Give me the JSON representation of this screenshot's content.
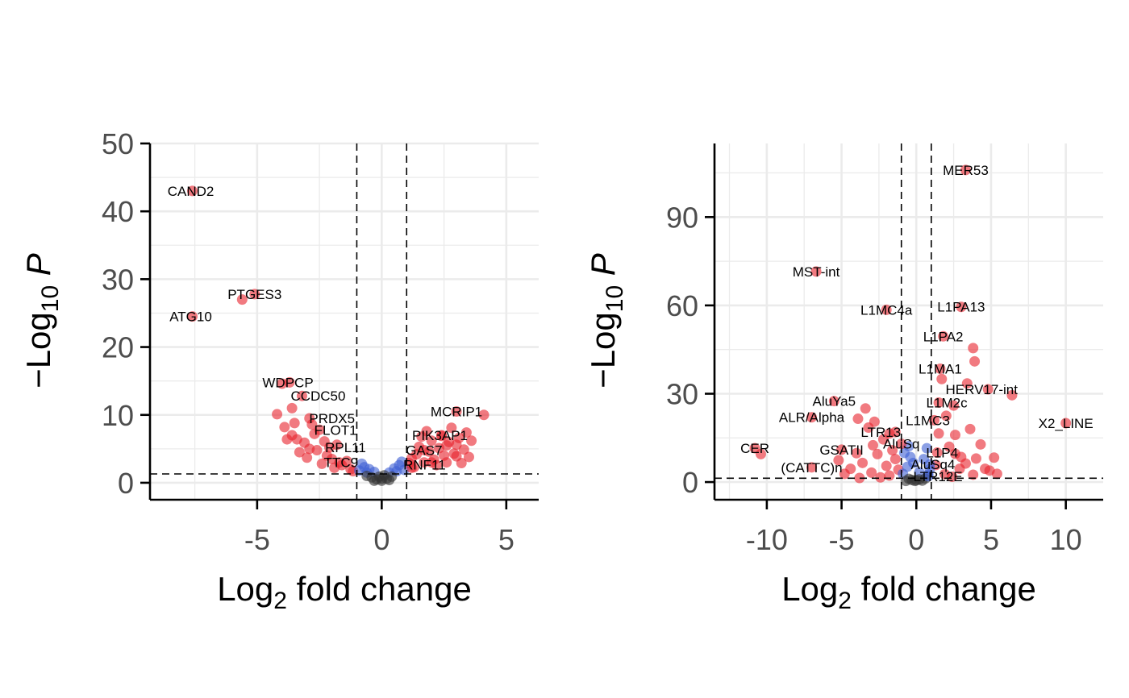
{
  "chart_data": [
    {
      "type": "scatter",
      "xlabel": "Log2 fold change",
      "ylabel": "−Log10 P",
      "xlim": [
        -9.3,
        6.3
      ],
      "ylim": [
        -2.5,
        50
      ],
      "xticks": [
        -5,
        0,
        5
      ],
      "yticks": [
        0,
        10,
        20,
        30,
        40,
        50
      ],
      "minor_x": [
        -7.5,
        -2.5,
        2.5
      ],
      "minor_y": [
        5,
        15,
        25,
        35,
        45
      ],
      "cutoffs": {
        "fc": 1,
        "p_line": 1.3
      },
      "grid": true,
      "legend": "none",
      "colors": {
        "sig": "#e8222b",
        "p_only": "#3e5fd4",
        "ns": "#333333"
      },
      "labeled_points": [
        {
          "label": "CAND2",
          "x": -7.6,
          "y": 43
        },
        {
          "label": "PTGES3",
          "x": -5.6,
          "y": 27
        },
        {
          "label": "PTGES3",
          "x": -5.1,
          "y": 27.8
        },
        {
          "label": "ATG10",
          "x": -7.6,
          "y": 24.5
        },
        {
          "label": "WDPCP",
          "x": -3.7,
          "y": 14.8
        },
        {
          "label": "CCDC50",
          "x": -3.2,
          "y": 12.8
        },
        {
          "label": "PRDX5",
          "x": -2.9,
          "y": 9.5
        },
        {
          "label": "FLOT1",
          "x": -2.5,
          "y": 7.8
        },
        {
          "label": "RPL11",
          "x": -2.1,
          "y": 5.2
        },
        {
          "label": "TTC9",
          "x": -1.7,
          "y": 3.0
        },
        {
          "label": "RNF11",
          "x": 1.2,
          "y": 2.2
        },
        {
          "label": "MCRIP1",
          "x": 3.0,
          "y": 10.5
        },
        {
          "label": "PIK3AP1",
          "x": 2.4,
          "y": 7.0
        },
        {
          "label": "GAS7",
          "x": 1.7,
          "y": 4.8
        }
      ],
      "points": [
        [
          -4.2,
          10.1
        ],
        [
          -3.9,
          8.2
        ],
        [
          -3.6,
          7.0
        ],
        [
          -3.4,
          6.4
        ],
        [
          -3.1,
          5.9
        ],
        [
          -3.3,
          4.5
        ],
        [
          -3.0,
          3.7
        ],
        [
          -2.7,
          7.2
        ],
        [
          -2.6,
          4.8
        ],
        [
          -2.3,
          6.1
        ],
        [
          -2.2,
          4.0
        ],
        [
          -2.0,
          3.5
        ],
        [
          -1.8,
          5.6
        ],
        [
          -1.6,
          2.6
        ],
        [
          -1.4,
          3.2
        ],
        [
          -1.25,
          2.0
        ],
        [
          -1.15,
          1.7
        ],
        [
          -3.8,
          6.4
        ],
        [
          -3.5,
          8.8
        ],
        [
          -2.9,
          5.0
        ],
        [
          -2.4,
          2.8
        ],
        [
          -1.9,
          2.2
        ],
        [
          -4.0,
          14.6
        ],
        [
          -3.6,
          11.0
        ],
        [
          -2.8,
          8.6
        ],
        [
          1.2,
          3.6
        ],
        [
          1.4,
          4.2
        ],
        [
          1.5,
          5.3
        ],
        [
          1.7,
          3.0
        ],
        [
          1.9,
          4.6
        ],
        [
          2.0,
          6.2
        ],
        [
          2.1,
          3.4
        ],
        [
          2.3,
          5.1
        ],
        [
          2.5,
          4.0
        ],
        [
          2.7,
          6.0
        ],
        [
          2.8,
          8.1
        ],
        [
          2.9,
          4.3
        ],
        [
          3.1,
          6.6
        ],
        [
          3.3,
          4.9
        ],
        [
          3.4,
          7.4
        ],
        [
          3.5,
          3.8
        ],
        [
          4.1,
          10.0
        ],
        [
          1.3,
          2.3
        ],
        [
          1.6,
          6.8
        ],
        [
          2.2,
          2.6
        ],
        [
          2.6,
          3.0
        ],
        [
          3.0,
          5.6
        ],
        [
          3.2,
          2.9
        ],
        [
          1.8,
          7.6
        ],
        [
          2.4,
          6.9
        ],
        [
          3.6,
          6.2
        ],
        [
          2.0,
          3.0
        ],
        [
          1.1,
          2.9
        ],
        [
          2.6,
          5.5
        ],
        [
          3.0,
          3.9
        ],
        [
          -0.9,
          1.8
        ],
        [
          -0.7,
          2.3
        ],
        [
          -0.5,
          2.0
        ],
        [
          -0.3,
          1.6
        ],
        [
          0.3,
          1.5
        ],
        [
          0.5,
          2.1
        ],
        [
          0.7,
          2.6
        ],
        [
          0.9,
          1.9
        ],
        [
          -0.8,
          2.8
        ],
        [
          0.8,
          3.1
        ],
        [
          0.6,
          1.7
        ],
        [
          -0.6,
          1.5
        ],
        [
          -0.6,
          1.0
        ],
        [
          -0.4,
          0.8
        ],
        [
          -0.2,
          0.5
        ],
        [
          0.0,
          0.3
        ],
        [
          0.2,
          0.6
        ],
        [
          0.4,
          0.9
        ],
        [
          0.1,
          1.1
        ],
        [
          -0.1,
          0.9
        ],
        [
          0.0,
          0.6
        ],
        [
          0.3,
          0.4
        ],
        [
          -0.3,
          0.3
        ]
      ]
    },
    {
      "type": "scatter",
      "xlabel": "Log2 fold change",
      "ylabel": "−Log10 P",
      "xlim": [
        -13.5,
        12.5
      ],
      "ylim": [
        -6,
        115
      ],
      "xticks": [
        -10,
        -5,
        0,
        5,
        10
      ],
      "yticks": [
        0,
        30,
        60,
        90
      ],
      "minor_x": [
        -12.5,
        -7.5,
        -2.5,
        2.5,
        7.5
      ],
      "minor_y": [
        15,
        45,
        75,
        105
      ],
      "cutoffs": {
        "fc": 1,
        "p_line": 1.3
      },
      "grid": true,
      "legend": "none",
      "colors": {
        "sig": "#e8222b",
        "p_only": "#3e5fd4",
        "ns": "#333333"
      },
      "labeled_points": [
        {
          "label": "MER53",
          "x": 3.3,
          "y": 106
        },
        {
          "label": "MST-int",
          "x": -6.7,
          "y": 71.5
        },
        {
          "label": "L1MC4a",
          "x": -2.0,
          "y": 58.5
        },
        {
          "label": "L1PA13",
          "x": 3.0,
          "y": 59.5
        },
        {
          "label": "L1PA2",
          "x": 1.8,
          "y": 49.5
        },
        {
          "label": "L1MA1",
          "x": 1.6,
          "y": 38.5
        },
        {
          "label": "HERV17-int",
          "x": 4.8,
          "y": 31.5
        },
        {
          "label": "L1M2c",
          "x": 1.5,
          "y": 27
        },
        {
          "label": "AluYa5",
          "x": -5.5,
          "y": 27.5
        },
        {
          "label": "ALR/Alpha",
          "x": -7.0,
          "y": 22
        },
        {
          "label": "X2_LINE",
          "x": 10.0,
          "y": 20
        },
        {
          "label": "L1MC3",
          "x": 1.2,
          "y": 21
        },
        {
          "label": "LTR13",
          "x": -1.4,
          "y": 17
        },
        {
          "label": "CER",
          "x": -10.8,
          "y": 11.5
        },
        {
          "label": "GSATII",
          "x": -5.0,
          "y": 11
        },
        {
          "label": "AluSq",
          "x": -1.0,
          "y": 13
        },
        {
          "label": "L1P4",
          "x": 1.4,
          "y": 10
        },
        {
          "label": "(CATTC)n",
          "x": -7.0,
          "y": 5
        },
        {
          "label": "AluSq4",
          "x": 0.9,
          "y": 6
        },
        {
          "label": "LTR12E",
          "x": 0.8,
          "y": 2
        }
      ],
      "points": [
        [
          -10.4,
          9.5
        ],
        [
          -3.4,
          25
        ],
        [
          -3.9,
          21.5
        ],
        [
          -2.8,
          20.5
        ],
        [
          -3.2,
          18.5
        ],
        [
          -2.2,
          14.5
        ],
        [
          -1.8,
          16.5
        ],
        [
          -2.6,
          9.5
        ],
        [
          -3.6,
          6.5
        ],
        [
          -4.4,
          4.5
        ],
        [
          -3.0,
          3.2
        ],
        [
          -2.0,
          5.5
        ],
        [
          -1.4,
          7.8
        ],
        [
          -1.8,
          2.2
        ],
        [
          -2.4,
          1.6
        ],
        [
          -3.8,
          1.4
        ],
        [
          -4.8,
          2.8
        ],
        [
          -5.2,
          7.4
        ],
        [
          -4.0,
          9.8
        ],
        [
          -2.9,
          12.5
        ],
        [
          -1.2,
          4.2
        ],
        [
          -1.6,
          10.8
        ],
        [
          1.5,
          16.5
        ],
        [
          1.7,
          35
        ],
        [
          2.2,
          12
        ],
        [
          2.6,
          16
        ],
        [
          3.0,
          8.5
        ],
        [
          3.4,
          33.5
        ],
        [
          3.8,
          45.5
        ],
        [
          3.9,
          41
        ],
        [
          4.0,
          8
        ],
        [
          4.3,
          12.8
        ],
        [
          4.6,
          4.5
        ],
        [
          5.2,
          8.3
        ],
        [
          5.4,
          2.8
        ],
        [
          6.4,
          29.5
        ],
        [
          2.5,
          26
        ],
        [
          3.6,
          18
        ],
        [
          2.0,
          22.5
        ],
        [
          2.9,
          4.5
        ],
        [
          3.3,
          6.3
        ],
        [
          1.9,
          2.7
        ],
        [
          2.4,
          1.8
        ],
        [
          4.9,
          3.9
        ],
        [
          3.8,
          2.5
        ],
        [
          1.3,
          5.8
        ],
        [
          2.6,
          9.6
        ],
        [
          -0.9,
          2.8
        ],
        [
          -0.6,
          5.2
        ],
        [
          -0.4,
          8.5
        ],
        [
          -0.2,
          6.5
        ],
        [
          0.5,
          7.8
        ],
        [
          0.7,
          11.5
        ],
        [
          0.9,
          4.4
        ],
        [
          -0.8,
          9.9
        ],
        [
          0.2,
          3.4
        ],
        [
          -0.5,
          12.2
        ],
        [
          0.8,
          2.6
        ],
        [
          -0.5,
          1.1
        ],
        [
          -0.3,
          0.7
        ],
        [
          -0.1,
          0.4
        ],
        [
          0.0,
          0.6
        ],
        [
          0.2,
          0.9
        ],
        [
          0.4,
          0.5
        ],
        [
          0.6,
          1.2
        ],
        [
          -0.7,
          0.4
        ]
      ]
    }
  ]
}
